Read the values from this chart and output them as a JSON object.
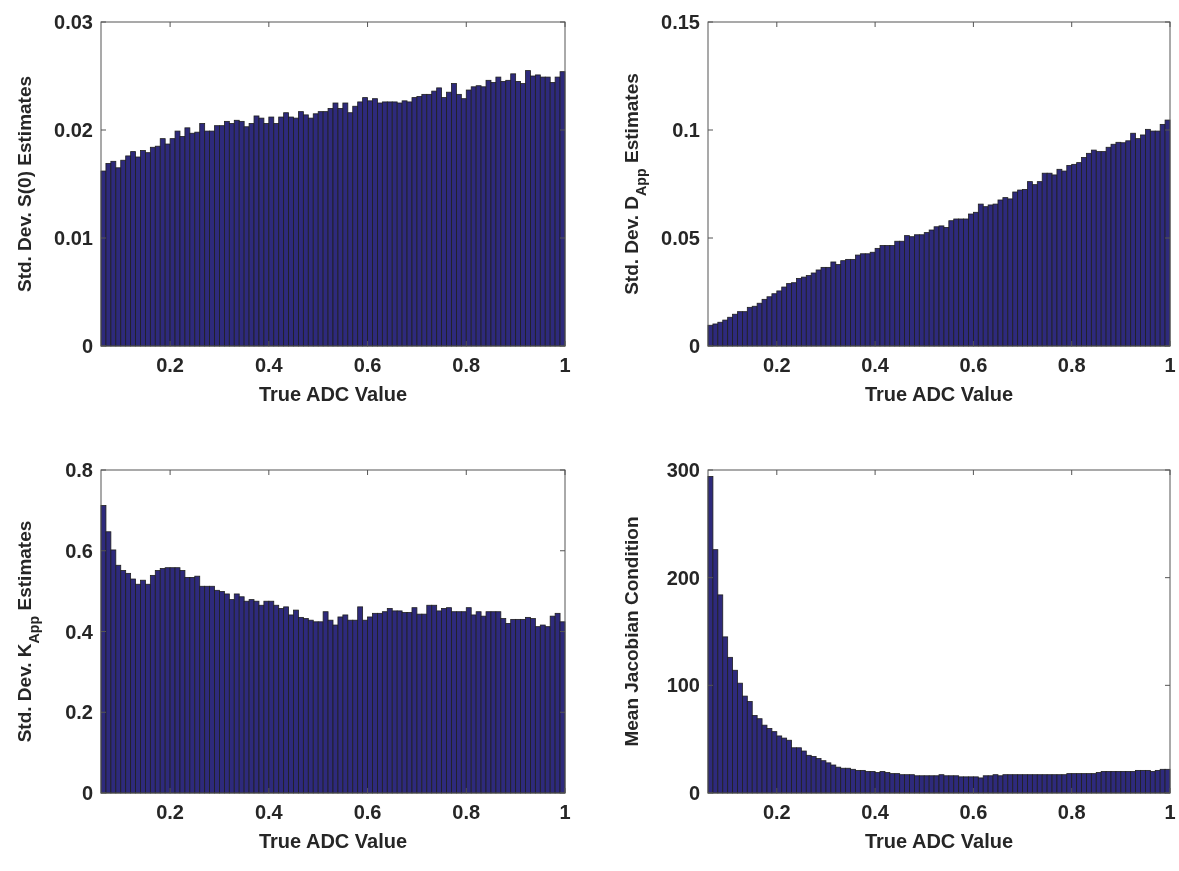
{
  "chart_data": [
    {
      "type": "histogram",
      "xlabel": "True ADC Value",
      "ylabel": "Std. Dev. S(0) Estimates",
      "color": "#2e2a7c",
      "xlim": [
        0.06,
        1
      ],
      "ylim": [
        0,
        0.03
      ],
      "xticks": [
        0.2,
        0.4,
        0.6,
        0.8,
        1
      ],
      "yticks": [
        0,
        0.01,
        0.02,
        0.03
      ],
      "bins": [
        0.06,
        0.07,
        0.08,
        0.09,
        0.1,
        0.11,
        0.12,
        0.13,
        0.14,
        0.15,
        0.16,
        0.17,
        0.18,
        0.19,
        0.2,
        0.21,
        0.22,
        0.23,
        0.24,
        0.25,
        0.26,
        0.27,
        0.28,
        0.29,
        0.3,
        0.31,
        0.32,
        0.33,
        0.34,
        0.35,
        0.36,
        0.37,
        0.38,
        0.39,
        0.4,
        0.41,
        0.42,
        0.43,
        0.44,
        0.45,
        0.46,
        0.47,
        0.48,
        0.49,
        0.5,
        0.51,
        0.52,
        0.53,
        0.54,
        0.55,
        0.56,
        0.57,
        0.58,
        0.59,
        0.6,
        0.61,
        0.62,
        0.63,
        0.64,
        0.65,
        0.66,
        0.67,
        0.68,
        0.69,
        0.7,
        0.71,
        0.72,
        0.73,
        0.74,
        0.75,
        0.76,
        0.77,
        0.78,
        0.79,
        0.8,
        0.81,
        0.82,
        0.83,
        0.84,
        0.85,
        0.86,
        0.87,
        0.88,
        0.89,
        0.9,
        0.91,
        0.92,
        0.93,
        0.94,
        0.95,
        0.96,
        0.97,
        0.98,
        0.99,
        1.0
      ],
      "values": [
        0.0162,
        0.0169,
        0.0171,
        0.0165,
        0.0172,
        0.0176,
        0.018,
        0.0175,
        0.0181,
        0.0179,
        0.0184,
        0.0185,
        0.0192,
        0.0187,
        0.0192,
        0.0199,
        0.0194,
        0.0202,
        0.0197,
        0.0198,
        0.0206,
        0.0199,
        0.0199,
        0.0204,
        0.0204,
        0.0208,
        0.0206,
        0.0209,
        0.0208,
        0.0203,
        0.0206,
        0.0213,
        0.0211,
        0.0206,
        0.0212,
        0.0206,
        0.0212,
        0.0216,
        0.0212,
        0.0211,
        0.0217,
        0.0214,
        0.0211,
        0.0215,
        0.0217,
        0.0217,
        0.022,
        0.0225,
        0.022,
        0.0225,
        0.0216,
        0.0222,
        0.0226,
        0.023,
        0.0227,
        0.0229,
        0.0225,
        0.0226,
        0.0226,
        0.0226,
        0.0225,
        0.0227,
        0.0226,
        0.023,
        0.0231,
        0.0233,
        0.0233,
        0.0236,
        0.0239,
        0.023,
        0.0235,
        0.0243,
        0.0233,
        0.0229,
        0.0237,
        0.024,
        0.0241,
        0.024,
        0.0246,
        0.0244,
        0.0249,
        0.0245,
        0.0246,
        0.0252,
        0.0245,
        0.0243,
        0.0255,
        0.025,
        0.0251,
        0.0249,
        0.0249,
        0.0244,
        0.0249,
        0.0254
      ]
    },
    {
      "type": "histogram",
      "xlabel": "True ADC Value",
      "ylabel": "Std. Dev. D$_{App}$ Estimates",
      "color": "#2e2a7c",
      "xlim": [
        0.06,
        1
      ],
      "ylim": [
        0,
        0.15
      ],
      "xticks": [
        0.2,
        0.4,
        0.6,
        0.8,
        1
      ],
      "yticks": [
        0,
        0.05,
        0.1,
        0.15
      ],
      "bins": [
        0.06,
        0.07,
        0.08,
        0.09,
        0.1,
        0.11,
        0.12,
        0.13,
        0.14,
        0.15,
        0.16,
        0.17,
        0.18,
        0.19,
        0.2,
        0.21,
        0.22,
        0.23,
        0.24,
        0.25,
        0.26,
        0.27,
        0.28,
        0.29,
        0.3,
        0.31,
        0.32,
        0.33,
        0.34,
        0.35,
        0.36,
        0.37,
        0.38,
        0.39,
        0.4,
        0.41,
        0.42,
        0.43,
        0.44,
        0.45,
        0.46,
        0.47,
        0.48,
        0.49,
        0.5,
        0.51,
        0.52,
        0.53,
        0.54,
        0.55,
        0.56,
        0.57,
        0.58,
        0.59,
        0.6,
        0.61,
        0.62,
        0.63,
        0.64,
        0.65,
        0.66,
        0.67,
        0.68,
        0.69,
        0.7,
        0.71,
        0.72,
        0.73,
        0.74,
        0.75,
        0.76,
        0.77,
        0.78,
        0.79,
        0.8,
        0.81,
        0.82,
        0.83,
        0.84,
        0.85,
        0.86,
        0.87,
        0.88,
        0.89,
        0.9,
        0.91,
        0.92,
        0.93,
        0.94,
        0.95,
        0.96,
        0.97,
        0.98,
        0.99,
        1.0
      ],
      "values": [
        0.0096,
        0.0102,
        0.011,
        0.012,
        0.0133,
        0.0147,
        0.0159,
        0.0159,
        0.0179,
        0.0184,
        0.0198,
        0.0216,
        0.0228,
        0.0242,
        0.0255,
        0.0273,
        0.0289,
        0.0293,
        0.0313,
        0.0319,
        0.0326,
        0.0338,
        0.0352,
        0.0364,
        0.0364,
        0.0389,
        0.0377,
        0.0395,
        0.0401,
        0.0401,
        0.0421,
        0.0427,
        0.0427,
        0.0434,
        0.0452,
        0.0465,
        0.0465,
        0.0465,
        0.0485,
        0.0485,
        0.0511,
        0.0506,
        0.0515,
        0.0515,
        0.0525,
        0.0537,
        0.0552,
        0.0556,
        0.0549,
        0.058,
        0.0588,
        0.0588,
        0.0588,
        0.0611,
        0.0619,
        0.0657,
        0.0645,
        0.0653,
        0.0657,
        0.0676,
        0.0687,
        0.0681,
        0.0713,
        0.0722,
        0.0725,
        0.0761,
        0.0747,
        0.0761,
        0.08,
        0.08,
        0.0792,
        0.0818,
        0.081,
        0.0836,
        0.0841,
        0.0849,
        0.0873,
        0.0892,
        0.0907,
        0.09,
        0.09,
        0.092,
        0.0934,
        0.0943,
        0.0941,
        0.095,
        0.0985,
        0.096,
        0.0977,
        0.1003,
        0.0995,
        0.0995,
        0.1026,
        0.1046
      ]
    },
    {
      "type": "histogram",
      "xlabel": "True ADC Value",
      "ylabel": "Std. Dev. K$_{App}$ Estimates",
      "color": "#2e2a7c",
      "xlim": [
        0.06,
        1
      ],
      "ylim": [
        0,
        0.8
      ],
      "xticks": [
        0.2,
        0.4,
        0.6,
        0.8,
        1
      ],
      "yticks": [
        0,
        0.2,
        0.4,
        0.6,
        0.8
      ],
      "bins": [
        0.06,
        0.07,
        0.08,
        0.09,
        0.1,
        0.11,
        0.12,
        0.13,
        0.14,
        0.15,
        0.16,
        0.17,
        0.18,
        0.19,
        0.2,
        0.21,
        0.22,
        0.23,
        0.24,
        0.25,
        0.26,
        0.27,
        0.28,
        0.29,
        0.3,
        0.31,
        0.32,
        0.33,
        0.34,
        0.35,
        0.36,
        0.37,
        0.38,
        0.39,
        0.4,
        0.41,
        0.42,
        0.43,
        0.44,
        0.45,
        0.46,
        0.47,
        0.48,
        0.49,
        0.5,
        0.51,
        0.52,
        0.53,
        0.54,
        0.55,
        0.56,
        0.57,
        0.58,
        0.59,
        0.6,
        0.61,
        0.62,
        0.63,
        0.64,
        0.65,
        0.66,
        0.67,
        0.68,
        0.69,
        0.7,
        0.71,
        0.72,
        0.73,
        0.74,
        0.75,
        0.76,
        0.77,
        0.78,
        0.79,
        0.8,
        0.81,
        0.82,
        0.83,
        0.84,
        0.85,
        0.86,
        0.87,
        0.88,
        0.89,
        0.9,
        0.91,
        0.92,
        0.93,
        0.94,
        0.95,
        0.96,
        0.97,
        0.98,
        0.99,
        1.0
      ],
      "values": [
        0.712,
        0.647,
        0.602,
        0.564,
        0.551,
        0.544,
        0.53,
        0.517,
        0.527,
        0.517,
        0.539,
        0.551,
        0.556,
        0.558,
        0.558,
        0.558,
        0.551,
        0.534,
        0.534,
        0.537,
        0.512,
        0.512,
        0.512,
        0.502,
        0.499,
        0.493,
        0.479,
        0.493,
        0.486,
        0.475,
        0.479,
        0.475,
        0.465,
        0.475,
        0.475,
        0.465,
        0.457,
        0.461,
        0.441,
        0.453,
        0.435,
        0.432,
        0.428,
        0.424,
        0.424,
        0.449,
        0.428,
        0.416,
        0.436,
        0.441,
        0.428,
        0.428,
        0.461,
        0.428,
        0.436,
        0.445,
        0.445,
        0.449,
        0.457,
        0.451,
        0.451,
        0.447,
        0.447,
        0.459,
        0.443,
        0.443,
        0.465,
        0.465,
        0.451,
        0.457,
        0.459,
        0.449,
        0.449,
        0.449,
        0.459,
        0.441,
        0.449,
        0.438,
        0.449,
        0.449,
        0.449,
        0.432,
        0.42,
        0.43,
        0.43,
        0.43,
        0.435,
        0.432,
        0.412,
        0.416,
        0.412,
        0.438,
        0.445,
        0.424
      ]
    },
    {
      "type": "histogram",
      "xlabel": "True ADC Value",
      "ylabel": "Mean Jacobian Condition",
      "color": "#2e2a7c",
      "xlim": [
        0.06,
        1
      ],
      "ylim": [
        0,
        300
      ],
      "xticks": [
        0.2,
        0.4,
        0.6,
        0.8,
        1
      ],
      "yticks": [
        0,
        100,
        200,
        300
      ],
      "bins": [
        0.06,
        0.07,
        0.08,
        0.09,
        0.1,
        0.11,
        0.12,
        0.13,
        0.14,
        0.15,
        0.16,
        0.17,
        0.18,
        0.19,
        0.2,
        0.21,
        0.22,
        0.23,
        0.24,
        0.25,
        0.26,
        0.27,
        0.28,
        0.29,
        0.3,
        0.31,
        0.32,
        0.33,
        0.34,
        0.35,
        0.36,
        0.37,
        0.38,
        0.39,
        0.4,
        0.41,
        0.42,
        0.43,
        0.44,
        0.45,
        0.46,
        0.47,
        0.48,
        0.49,
        0.5,
        0.51,
        0.52,
        0.53,
        0.54,
        0.55,
        0.56,
        0.57,
        0.58,
        0.59,
        0.6,
        0.61,
        0.62,
        0.63,
        0.64,
        0.65,
        0.66,
        0.67,
        0.68,
        0.69,
        0.7,
        0.71,
        0.72,
        0.73,
        0.74,
        0.75,
        0.76,
        0.77,
        0.78,
        0.79,
        0.8,
        0.81,
        0.82,
        0.83,
        0.84,
        0.85,
        0.86,
        0.87,
        0.88,
        0.89,
        0.9,
        0.91,
        0.92,
        0.93,
        0.94,
        0.95,
        0.96,
        0.97,
        0.98,
        0.99,
        1.0
      ],
      "values": [
        294,
        226,
        184,
        145,
        126,
        114,
        102,
        90,
        85,
        72,
        69,
        63,
        60,
        57,
        53,
        51,
        49,
        42,
        42,
        39,
        35,
        34,
        32,
        30,
        28,
        26,
        24,
        23,
        23,
        22,
        21,
        21,
        20,
        20,
        19,
        20,
        19,
        18,
        18,
        17,
        17,
        17,
        16,
        16,
        16,
        16,
        16,
        17,
        16,
        16,
        16,
        15,
        15,
        15,
        15,
        14,
        16,
        16,
        17,
        16,
        17,
        17,
        17,
        17,
        17,
        17,
        17,
        17,
        17,
        17,
        17,
        17,
        17,
        18,
        18,
        18,
        18,
        18,
        18,
        19,
        20,
        20,
        20,
        20,
        20,
        20,
        20,
        21,
        21,
        21,
        20,
        21,
        22,
        22
      ]
    }
  ]
}
